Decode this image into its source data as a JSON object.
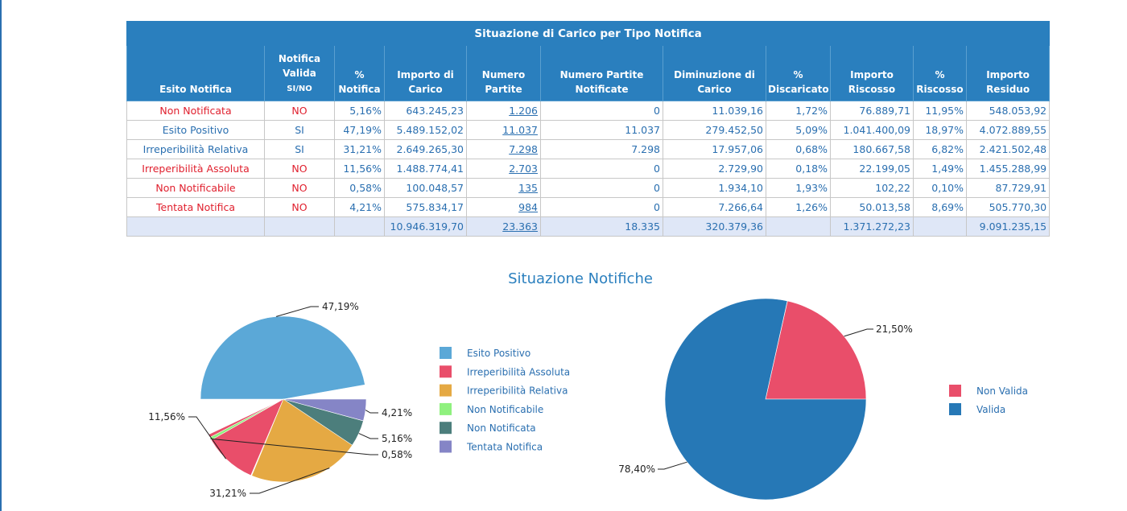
{
  "table": {
    "title": "Situazione di Carico per Tipo Notifica",
    "headers": [
      {
        "lines": [
          "Esito Notifica"
        ]
      },
      {
        "lines": [
          "Notifica",
          "Valida"
        ],
        "sub": "SI/NO"
      },
      {
        "lines": [
          "%",
          "Notifica"
        ]
      },
      {
        "lines": [
          "Importo di",
          "Carico"
        ]
      },
      {
        "lines": [
          "Numero",
          "Partite"
        ]
      },
      {
        "lines": [
          "Numero Partite",
          "Notificate"
        ]
      },
      {
        "lines": [
          "Diminuzione di",
          "Carico"
        ]
      },
      {
        "lines": [
          "%",
          "Discaricato"
        ]
      },
      {
        "lines": [
          "Importo",
          "Riscosso"
        ]
      },
      {
        "lines": [
          "%",
          "Riscosso"
        ]
      },
      {
        "lines": [
          "Importo",
          "Residuo"
        ]
      }
    ],
    "rows": [
      {
        "esito": "Non Notificata",
        "valida": "NO",
        "pct_notifica": "5,16%",
        "importo_carico": "643.245,23",
        "numero_partite": "1.206",
        "partite_notificate": "0",
        "diminuzione": "11.039,16",
        "pct_discaricato": "1,72%",
        "importo_riscosso": "76.889,71",
        "pct_riscosso": "11,95%",
        "importo_residuo": "548.053,92"
      },
      {
        "esito": "Esito Positivo",
        "valida": "SI",
        "pct_notifica": "47,19%",
        "importo_carico": "5.489.152,02",
        "numero_partite": "11.037",
        "partite_notificate": "11.037",
        "diminuzione": "279.452,50",
        "pct_discaricato": "5,09%",
        "importo_riscosso": "1.041.400,09",
        "pct_riscosso": "18,97%",
        "importo_residuo": "4.072.889,55"
      },
      {
        "esito": "Irreperibilità Relativa",
        "valida": "SI",
        "pct_notifica": "31,21%",
        "importo_carico": "2.649.265,30",
        "numero_partite": "7.298",
        "partite_notificate": "7.298",
        "diminuzione": "17.957,06",
        "pct_discaricato": "0,68%",
        "importo_riscosso": "180.667,58",
        "pct_riscosso": "6,82%",
        "importo_residuo": "2.421.502,48"
      },
      {
        "esito": "Irreperibilità Assoluta",
        "valida": "NO",
        "pct_notifica": "11,56%",
        "importo_carico": "1.488.774,41",
        "numero_partite": "2.703",
        "partite_notificate": "0",
        "diminuzione": "2.729,90",
        "pct_discaricato": "0,18%",
        "importo_riscosso": "22.199,05",
        "pct_riscosso": "1,49%",
        "importo_residuo": "1.455.288,99"
      },
      {
        "esito": "Non Notificabile",
        "valida": "NO",
        "pct_notifica": "0,58%",
        "importo_carico": "100.048,57",
        "numero_partite": "135",
        "partite_notificate": "0",
        "diminuzione": "1.934,10",
        "pct_discaricato": "1,93%",
        "importo_riscosso": "102,22",
        "pct_riscosso": "0,10%",
        "importo_residuo": "87.729,91"
      },
      {
        "esito": "Tentata Notifica",
        "valida": "NO",
        "pct_notifica": "4,21%",
        "importo_carico": "575.834,17",
        "numero_partite": "984",
        "partite_notificate": "0",
        "diminuzione": "7.266,64",
        "pct_discaricato": "1,26%",
        "importo_riscosso": "50.013,58",
        "pct_riscosso": "8,69%",
        "importo_residuo": "505.770,30"
      }
    ],
    "total": {
      "esito": "",
      "valida": "",
      "pct_notifica": "",
      "importo_carico": "10.946.319,70",
      "numero_partite": "23.363",
      "partite_notificate": "18.335",
      "diminuzione": "320.379,36",
      "pct_discaricato": "",
      "importo_riscosso": "1.371.272,23",
      "pct_riscosso": "",
      "importo_residuo": "9.091.235,15"
    }
  },
  "colors": {
    "header_blue": "#2a7fbe",
    "text_blue": "#2a6fb0",
    "text_red": "#e0202e",
    "total_row_bg": "#dfe7f7"
  },
  "chart_data": [
    {
      "type": "pie",
      "title": "Situazione Notifiche",
      "legend_position": "right",
      "categories": [
        "Esito Positivo",
        "Irreperibilità Assoluta",
        "Irreperibilità Relativa",
        "Non Notificabile",
        "Non Notificata",
        "Tentata Notifica"
      ],
      "values": [
        47.19,
        11.56,
        31.21,
        0.58,
        5.16,
        4.21
      ],
      "value_labels": [
        "47,19%",
        "11,56%",
        "31,21%",
        "0,58%",
        "5,16%",
        "4,21%"
      ],
      "colors": [
        "#5ba8d7",
        "#e94e6a",
        "#e5a943",
        "#8ff17e",
        "#4c7e7c",
        "#8585c6"
      ]
    },
    {
      "type": "pie",
      "legend_position": "right",
      "categories": [
        "Non Valida",
        "Valida"
      ],
      "values": [
        21.5,
        78.4
      ],
      "value_labels": [
        "21,50%",
        "78,40%"
      ],
      "colors": [
        "#e94e6a",
        "#2678b6"
      ]
    }
  ]
}
